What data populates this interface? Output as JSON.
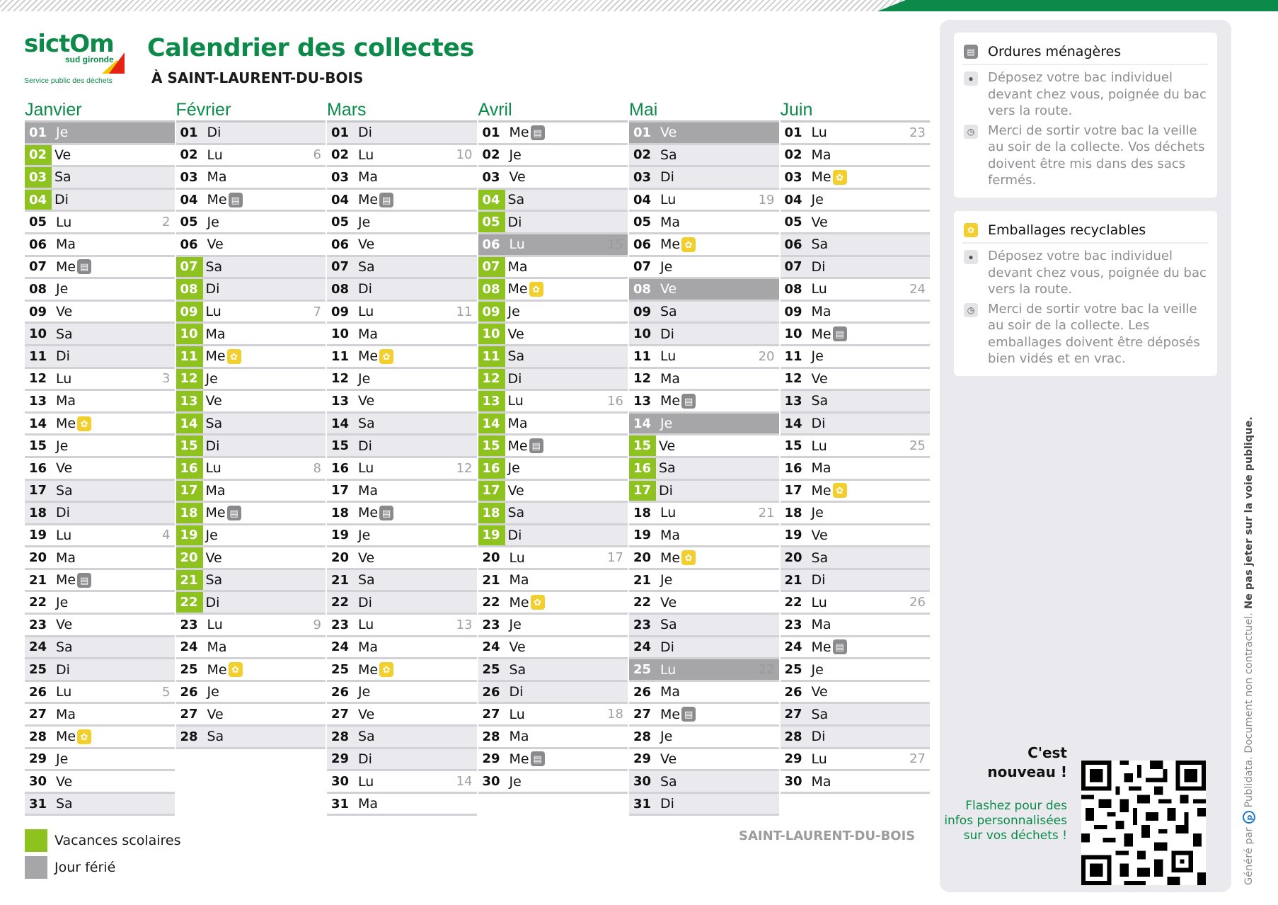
{
  "header": {
    "logo": {
      "main": "sictOm",
      "sub": "sud gironde",
      "tagline": "Service public des déchets"
    },
    "title": "Calendrier des collectes",
    "subtitle": "À SAINT-LAURENT-DU-BOIS"
  },
  "colors": {
    "brand_green": "#0b8a4a",
    "vacation_green": "#8dc21f",
    "holiday_gray": "#a6a6a8",
    "weekend_bg": "#e9e9ee",
    "ordures_badge": "#8a8a8c",
    "recyclables_badge": "#f3cf2e"
  },
  "icons": {
    "ordures": "trash-bin-icon",
    "recyclables": "recycling-bag-icon",
    "location": "location-pin-icon",
    "time": "clock-icon"
  },
  "months": [
    {
      "name": "Janvier",
      "days": [
        {
          "n": "01",
          "d": "Je",
          "holiday": true
        },
        {
          "n": "02",
          "d": "Ve",
          "vac": true
        },
        {
          "n": "03",
          "d": "Sa",
          "vac": true
        },
        {
          "n": "04",
          "d": "Di",
          "vac": true
        },
        {
          "n": "05",
          "d": "Lu",
          "wk": "2"
        },
        {
          "n": "06",
          "d": "Ma"
        },
        {
          "n": "07",
          "d": "Me",
          "badge": "om"
        },
        {
          "n": "08",
          "d": "Je"
        },
        {
          "n": "09",
          "d": "Ve"
        },
        {
          "n": "10",
          "d": "Sa"
        },
        {
          "n": "11",
          "d": "Di"
        },
        {
          "n": "12",
          "d": "Lu",
          "wk": "3"
        },
        {
          "n": "13",
          "d": "Ma"
        },
        {
          "n": "14",
          "d": "Me",
          "badge": "rec"
        },
        {
          "n": "15",
          "d": "Je"
        },
        {
          "n": "16",
          "d": "Ve"
        },
        {
          "n": "17",
          "d": "Sa"
        },
        {
          "n": "18",
          "d": "Di"
        },
        {
          "n": "19",
          "d": "Lu",
          "wk": "4"
        },
        {
          "n": "20",
          "d": "Ma"
        },
        {
          "n": "21",
          "d": "Me",
          "badge": "om"
        },
        {
          "n": "22",
          "d": "Je"
        },
        {
          "n": "23",
          "d": "Ve"
        },
        {
          "n": "24",
          "d": "Sa"
        },
        {
          "n": "25",
          "d": "Di"
        },
        {
          "n": "26",
          "d": "Lu",
          "wk": "5"
        },
        {
          "n": "27",
          "d": "Ma"
        },
        {
          "n": "28",
          "d": "Me",
          "badge": "rec"
        },
        {
          "n": "29",
          "d": "Je"
        },
        {
          "n": "30",
          "d": "Ve"
        },
        {
          "n": "31",
          "d": "Sa"
        }
      ]
    },
    {
      "name": "Février",
      "days": [
        {
          "n": "01",
          "d": "Di"
        },
        {
          "n": "02",
          "d": "Lu",
          "wk": "6"
        },
        {
          "n": "03",
          "d": "Ma"
        },
        {
          "n": "04",
          "d": "Me",
          "badge": "om"
        },
        {
          "n": "05",
          "d": "Je"
        },
        {
          "n": "06",
          "d": "Ve"
        },
        {
          "n": "07",
          "d": "Sa",
          "vac": true
        },
        {
          "n": "08",
          "d": "Di",
          "vac": true
        },
        {
          "n": "09",
          "d": "Lu",
          "wk": "7",
          "vac": true
        },
        {
          "n": "10",
          "d": "Ma",
          "vac": true
        },
        {
          "n": "11",
          "d": "Me",
          "badge": "rec",
          "vac": true
        },
        {
          "n": "12",
          "d": "Je",
          "vac": true
        },
        {
          "n": "13",
          "d": "Ve",
          "vac": true
        },
        {
          "n": "14",
          "d": "Sa",
          "vac": true
        },
        {
          "n": "15",
          "d": "Di",
          "vac": true
        },
        {
          "n": "16",
          "d": "Lu",
          "wk": "8",
          "vac": true
        },
        {
          "n": "17",
          "d": "Ma",
          "vac": true
        },
        {
          "n": "18",
          "d": "Me",
          "badge": "om",
          "vac": true
        },
        {
          "n": "19",
          "d": "Je",
          "vac": true
        },
        {
          "n": "20",
          "d": "Ve",
          "vac": true
        },
        {
          "n": "21",
          "d": "Sa",
          "vac": true
        },
        {
          "n": "22",
          "d": "Di",
          "vac": true
        },
        {
          "n": "23",
          "d": "Lu",
          "wk": "9"
        },
        {
          "n": "24",
          "d": "Ma"
        },
        {
          "n": "25",
          "d": "Me",
          "badge": "rec"
        },
        {
          "n": "26",
          "d": "Je"
        },
        {
          "n": "27",
          "d": "Ve"
        },
        {
          "n": "28",
          "d": "Sa"
        }
      ]
    },
    {
      "name": "Mars",
      "days": [
        {
          "n": "01",
          "d": "Di"
        },
        {
          "n": "02",
          "d": "Lu",
          "wk": "10"
        },
        {
          "n": "03",
          "d": "Ma"
        },
        {
          "n": "04",
          "d": "Me",
          "badge": "om"
        },
        {
          "n": "05",
          "d": "Je"
        },
        {
          "n": "06",
          "d": "Ve"
        },
        {
          "n": "07",
          "d": "Sa"
        },
        {
          "n": "08",
          "d": "Di"
        },
        {
          "n": "09",
          "d": "Lu",
          "wk": "11"
        },
        {
          "n": "10",
          "d": "Ma"
        },
        {
          "n": "11",
          "d": "Me",
          "badge": "rec"
        },
        {
          "n": "12",
          "d": "Je"
        },
        {
          "n": "13",
          "d": "Ve"
        },
        {
          "n": "14",
          "d": "Sa"
        },
        {
          "n": "15",
          "d": "Di"
        },
        {
          "n": "16",
          "d": "Lu",
          "wk": "12"
        },
        {
          "n": "17",
          "d": "Ma"
        },
        {
          "n": "18",
          "d": "Me",
          "badge": "om"
        },
        {
          "n": "19",
          "d": "Je"
        },
        {
          "n": "20",
          "d": "Ve"
        },
        {
          "n": "21",
          "d": "Sa"
        },
        {
          "n": "22",
          "d": "Di"
        },
        {
          "n": "23",
          "d": "Lu",
          "wk": "13"
        },
        {
          "n": "24",
          "d": "Ma"
        },
        {
          "n": "25",
          "d": "Me",
          "badge": "rec"
        },
        {
          "n": "26",
          "d": "Je"
        },
        {
          "n": "27",
          "d": "Ve"
        },
        {
          "n": "28",
          "d": "Sa"
        },
        {
          "n": "29",
          "d": "Di"
        },
        {
          "n": "30",
          "d": "Lu",
          "wk": "14"
        },
        {
          "n": "31",
          "d": "Ma"
        }
      ]
    },
    {
      "name": "Avril",
      "days": [
        {
          "n": "01",
          "d": "Me",
          "badge": "om"
        },
        {
          "n": "02",
          "d": "Je"
        },
        {
          "n": "03",
          "d": "Ve"
        },
        {
          "n": "04",
          "d": "Sa",
          "vac": true
        },
        {
          "n": "05",
          "d": "Di",
          "vac": true
        },
        {
          "n": "06",
          "d": "Lu",
          "wk": "15",
          "holiday": true
        },
        {
          "n": "07",
          "d": "Ma",
          "vac": true
        },
        {
          "n": "08",
          "d": "Me",
          "badge": "rec",
          "vac": true
        },
        {
          "n": "09",
          "d": "Je",
          "vac": true
        },
        {
          "n": "10",
          "d": "Ve",
          "vac": true
        },
        {
          "n": "11",
          "d": "Sa",
          "vac": true
        },
        {
          "n": "12",
          "d": "Di",
          "vac": true
        },
        {
          "n": "13",
          "d": "Lu",
          "wk": "16",
          "vac": true
        },
        {
          "n": "14",
          "d": "Ma",
          "vac": true
        },
        {
          "n": "15",
          "d": "Me",
          "badge": "om",
          "vac": true
        },
        {
          "n": "16",
          "d": "Je",
          "vac": true
        },
        {
          "n": "17",
          "d": "Ve",
          "vac": true
        },
        {
          "n": "18",
          "d": "Sa",
          "vac": true
        },
        {
          "n": "19",
          "d": "Di",
          "vac": true
        },
        {
          "n": "20",
          "d": "Lu",
          "wk": "17"
        },
        {
          "n": "21",
          "d": "Ma"
        },
        {
          "n": "22",
          "d": "Me",
          "badge": "rec"
        },
        {
          "n": "23",
          "d": "Je"
        },
        {
          "n": "24",
          "d": "Ve"
        },
        {
          "n": "25",
          "d": "Sa"
        },
        {
          "n": "26",
          "d": "Di"
        },
        {
          "n": "27",
          "d": "Lu",
          "wk": "18"
        },
        {
          "n": "28",
          "d": "Ma"
        },
        {
          "n": "29",
          "d": "Me",
          "badge": "om"
        },
        {
          "n": "30",
          "d": "Je"
        }
      ]
    },
    {
      "name": "Mai",
      "days": [
        {
          "n": "01",
          "d": "Ve",
          "holiday": true
        },
        {
          "n": "02",
          "d": "Sa"
        },
        {
          "n": "03",
          "d": "Di"
        },
        {
          "n": "04",
          "d": "Lu",
          "wk": "19"
        },
        {
          "n": "05",
          "d": "Ma"
        },
        {
          "n": "06",
          "d": "Me",
          "badge": "rec"
        },
        {
          "n": "07",
          "d": "Je"
        },
        {
          "n": "08",
          "d": "Ve",
          "holiday": true
        },
        {
          "n": "09",
          "d": "Sa"
        },
        {
          "n": "10",
          "d": "Di"
        },
        {
          "n": "11",
          "d": "Lu",
          "wk": "20"
        },
        {
          "n": "12",
          "d": "Ma"
        },
        {
          "n": "13",
          "d": "Me",
          "badge": "om"
        },
        {
          "n": "14",
          "d": "Je",
          "holiday": true
        },
        {
          "n": "15",
          "d": "Ve",
          "vac": true
        },
        {
          "n": "16",
          "d": "Sa",
          "vac": true
        },
        {
          "n": "17",
          "d": "Di",
          "vac": true
        },
        {
          "n": "18",
          "d": "Lu",
          "wk": "21"
        },
        {
          "n": "19",
          "d": "Ma"
        },
        {
          "n": "20",
          "d": "Me",
          "badge": "rec"
        },
        {
          "n": "21",
          "d": "Je"
        },
        {
          "n": "22",
          "d": "Ve"
        },
        {
          "n": "23",
          "d": "Sa"
        },
        {
          "n": "24",
          "d": "Di"
        },
        {
          "n": "25",
          "d": "Lu",
          "wk": "22",
          "holiday": true
        },
        {
          "n": "26",
          "d": "Ma"
        },
        {
          "n": "27",
          "d": "Me",
          "badge": "om"
        },
        {
          "n": "28",
          "d": "Je"
        },
        {
          "n": "29",
          "d": "Ve"
        },
        {
          "n": "30",
          "d": "Sa"
        },
        {
          "n": "31",
          "d": "Di"
        }
      ]
    },
    {
      "name": "Juin",
      "days": [
        {
          "n": "01",
          "d": "Lu",
          "wk": "23"
        },
        {
          "n": "02",
          "d": "Ma"
        },
        {
          "n": "03",
          "d": "Me",
          "badge": "rec"
        },
        {
          "n": "04",
          "d": "Je"
        },
        {
          "n": "05",
          "d": "Ve"
        },
        {
          "n": "06",
          "d": "Sa"
        },
        {
          "n": "07",
          "d": "Di"
        },
        {
          "n": "08",
          "d": "Lu",
          "wk": "24"
        },
        {
          "n": "09",
          "d": "Ma"
        },
        {
          "n": "10",
          "d": "Me",
          "badge": "om"
        },
        {
          "n": "11",
          "d": "Je"
        },
        {
          "n": "12",
          "d": "Ve"
        },
        {
          "n": "13",
          "d": "Sa"
        },
        {
          "n": "14",
          "d": "Di"
        },
        {
          "n": "15",
          "d": "Lu",
          "wk": "25"
        },
        {
          "n": "16",
          "d": "Ma"
        },
        {
          "n": "17",
          "d": "Me",
          "badge": "rec"
        },
        {
          "n": "18",
          "d": "Je"
        },
        {
          "n": "19",
          "d": "Ve"
        },
        {
          "n": "20",
          "d": "Sa"
        },
        {
          "n": "21",
          "d": "Di"
        },
        {
          "n": "22",
          "d": "Lu",
          "wk": "26"
        },
        {
          "n": "23",
          "d": "Ma"
        },
        {
          "n": "24",
          "d": "Me",
          "badge": "om"
        },
        {
          "n": "25",
          "d": "Je"
        },
        {
          "n": "26",
          "d": "Ve"
        },
        {
          "n": "27",
          "d": "Sa"
        },
        {
          "n": "28",
          "d": "Di"
        },
        {
          "n": "29",
          "d": "Lu",
          "wk": "27"
        },
        {
          "n": "30",
          "d": "Ma"
        }
      ]
    }
  ],
  "legend": [
    {
      "label": "Vacances scolaires",
      "color": "#8dc21f"
    },
    {
      "label": "Jour férié",
      "color": "#a6a6a8"
    }
  ],
  "footer": {
    "town": "SAINT-LAURENT-DU-BOIS"
  },
  "sidebar": {
    "cards": [
      {
        "title": "Ordures ménagères",
        "lines": [
          "Déposez votre bac individuel devant chez vous, poignée du bac vers la route.",
          "Merci de sortir votre bac la veille au soir de la collecte. Vos déchets doivent être mis dans des sacs fermés."
        ]
      },
      {
        "title": "Emballages recyclables",
        "lines": [
          "Déposez votre bac individuel devant chez vous, poignée du bac vers la route.",
          "Merci de sortir votre bac la veille au soir de la collecte. Les emballages doivent être déposés bien vidés et en vrac."
        ]
      }
    ],
    "promo": {
      "title_line1": "C'est",
      "title_line2": "nouveau !",
      "text": "Flashez pour des infos personnalisées sur vos déchets !"
    }
  },
  "vertical_note": {
    "prefix": "Généré par",
    "brand": "Publidata",
    "text": ". Document non contractuel.",
    "strong": "Ne pas jeter sur la voie publique."
  }
}
